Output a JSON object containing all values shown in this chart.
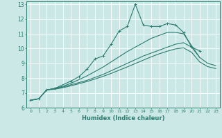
{
  "xlabel": "Humidex (Indice chaleur)",
  "bg_color": "#cbe8e7",
  "grid_color": "#ffffff",
  "line_color": "#2a7b6f",
  "xlim": [
    -0.5,
    23.5
  ],
  "ylim": [
    6,
    13.2
  ],
  "xticks": [
    0,
    1,
    2,
    3,
    4,
    5,
    6,
    7,
    8,
    9,
    10,
    11,
    12,
    13,
    14,
    15,
    16,
    17,
    18,
    19,
    20,
    21,
    22,
    23
  ],
  "yticks": [
    6,
    7,
    8,
    9,
    10,
    11,
    12,
    13
  ],
  "lines": [
    {
      "x": [
        0,
        1,
        2,
        3,
        5,
        6,
        7,
        8,
        9,
        10,
        11,
        12,
        13,
        14,
        15,
        16,
        17,
        18,
        19,
        20,
        21
      ],
      "y": [
        6.5,
        6.6,
        7.2,
        7.3,
        7.8,
        8.1,
        8.6,
        9.3,
        9.5,
        10.3,
        11.2,
        11.5,
        13.0,
        11.6,
        11.5,
        11.5,
        11.7,
        11.6,
        11.1,
        10.1,
        9.85
      ],
      "marker": true
    },
    {
      "x": [
        0,
        1,
        2,
        3,
        4,
        5,
        6,
        7,
        8,
        9,
        10,
        11,
        12,
        13,
        14,
        15,
        16,
        17,
        18,
        19,
        20,
        21
      ],
      "y": [
        6.5,
        6.6,
        7.2,
        7.3,
        7.45,
        7.65,
        7.9,
        8.15,
        8.45,
        8.75,
        9.1,
        9.45,
        9.8,
        10.1,
        10.4,
        10.7,
        10.9,
        11.1,
        11.1,
        11.0,
        10.2,
        9.4
      ],
      "marker": false
    },
    {
      "x": [
        0,
        1,
        2,
        3,
        4,
        5,
        6,
        7,
        8,
        9,
        10,
        11,
        12,
        13,
        14,
        15,
        16,
        17,
        18,
        19,
        20,
        21,
        22,
        23
      ],
      "y": [
        6.5,
        6.6,
        7.2,
        7.3,
        7.4,
        7.55,
        7.7,
        7.85,
        8.05,
        8.25,
        8.5,
        8.75,
        9.0,
        9.25,
        9.5,
        9.7,
        9.9,
        10.1,
        10.3,
        10.4,
        10.1,
        9.4,
        9.0,
        8.85
      ],
      "marker": false
    },
    {
      "x": [
        0,
        1,
        2,
        3,
        4,
        5,
        6,
        7,
        8,
        9,
        10,
        11,
        12,
        13,
        14,
        15,
        16,
        17,
        18,
        19,
        20,
        21,
        22,
        23
      ],
      "y": [
        6.5,
        6.6,
        7.2,
        7.25,
        7.35,
        7.48,
        7.62,
        7.77,
        7.94,
        8.12,
        8.32,
        8.54,
        8.76,
        8.99,
        9.22,
        9.45,
        9.65,
        9.83,
        9.98,
        10.05,
        9.75,
        9.1,
        8.78,
        8.65
      ],
      "marker": false
    }
  ]
}
